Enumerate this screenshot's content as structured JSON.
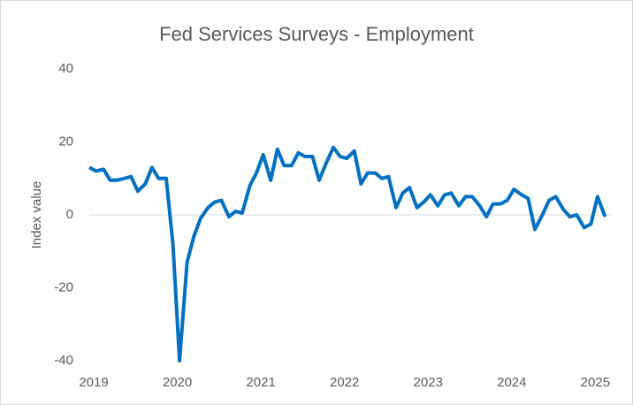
{
  "chart_data": {
    "type": "line",
    "title": "Fed Services Surveys - Employment",
    "y_label": "Index value",
    "x": [
      2019,
      2019.08,
      2019.17,
      2019.25,
      2019.33,
      2019.42,
      2019.5,
      2019.58,
      2019.67,
      2019.75,
      2019.83,
      2019.92,
      2020,
      2020.08,
      2020.17,
      2020.25,
      2020.33,
      2020.42,
      2020.5,
      2020.58,
      2020.67,
      2020.75,
      2020.83,
      2020.92,
      2021,
      2021.08,
      2021.17,
      2021.25,
      2021.33,
      2021.42,
      2021.5,
      2021.58,
      2021.67,
      2021.75,
      2021.83,
      2021.92,
      2022,
      2022.08,
      2022.17,
      2022.25,
      2022.33,
      2022.42,
      2022.5,
      2022.58,
      2022.67,
      2022.75,
      2022.83,
      2022.92,
      2023,
      2023.08,
      2023.17,
      2023.25,
      2023.33,
      2023.42,
      2023.5,
      2023.58,
      2023.67,
      2023.75,
      2023.83,
      2023.92,
      2024,
      2024.08,
      2024.17,
      2024.25,
      2024.33,
      2024.42,
      2024.5,
      2024.58,
      2024.67,
      2024.75,
      2024.83,
      2024.92,
      2025,
      2025.08,
      2025.17
    ],
    "series": [
      {
        "name": "Employment",
        "color": "#0070c0",
        "values": [
          13,
          12,
          12.5,
          9.5,
          9.5,
          10,
          10.5,
          6.5,
          8.5,
          13,
          10,
          10,
          -8,
          -40,
          -13,
          -6,
          -1,
          2,
          3.5,
          4,
          -0.5,
          1,
          0.5,
          8,
          11.5,
          16.5,
          9.5,
          18,
          13.5,
          13.5,
          17,
          16,
          16,
          9.5,
          14,
          18.5,
          16,
          15.5,
          17.5,
          8.5,
          11.5,
          11.5,
          10,
          10.5,
          2,
          6,
          7.5,
          2,
          3.5,
          5.5,
          2.5,
          5.5,
          6,
          2.5,
          5,
          5,
          2.5,
          -0.5,
          3,
          3,
          4,
          7,
          5.5,
          4.5,
          -4,
          0,
          4,
          5,
          1.5,
          -0.5,
          0,
          -3.5,
          -2.5,
          5,
          -0.5
        ]
      }
    ],
    "xlim": [
      2019,
      2025.25
    ],
    "xticks": [
      2019,
      2020,
      2021,
      2022,
      2023,
      2024,
      2025
    ],
    "ylim": [
      -40,
      40
    ],
    "yticks": [
      -40,
      -20,
      0,
      20,
      40
    ]
  }
}
